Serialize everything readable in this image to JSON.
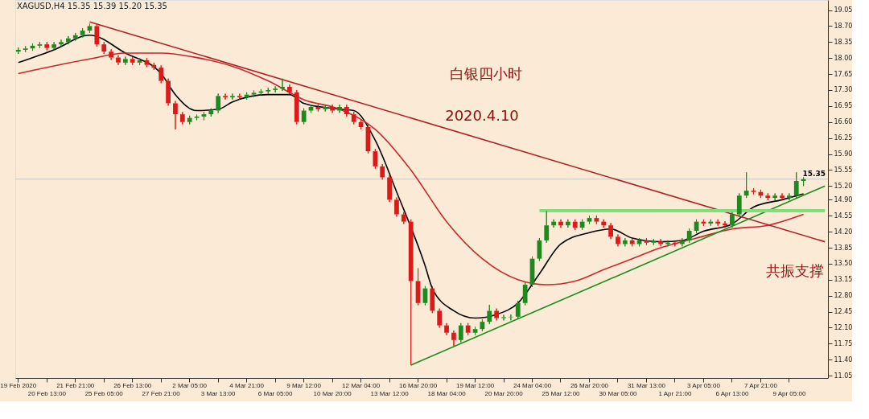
{
  "chart_data": {
    "type": "candlestick",
    "annotations": [
      "XAGUSD,H4  15.35 15.39 15.20 15.35",
      "白银四小时",
      "2020.4.10",
      "共振支撑"
    ],
    "categories": [
      "19 Feb 2020",
      null,
      null,
      null,
      "20 Feb 13:00",
      null,
      null,
      null,
      "21 Feb 21:00",
      null,
      null,
      null,
      "25 Feb 05:00",
      null,
      null,
      null,
      "26 Feb 13:00",
      null,
      null,
      null,
      "27 Feb 21:00",
      null,
      null,
      null,
      "2 Mar 05:00",
      null,
      null,
      null,
      "3 Mar 13:00",
      null,
      null,
      null,
      "4 Mar 21:00",
      null,
      null,
      null,
      "6 Mar 05:00",
      null,
      null,
      null,
      "9 Mar 12:00",
      null,
      null,
      null,
      "10 Mar 20:00",
      null,
      null,
      null,
      "12 Mar 04:00",
      null,
      null,
      null,
      "13 Mar 12:00",
      null,
      null,
      null,
      "16 Mar 20:00",
      null,
      null,
      null,
      "18 Mar 04:00",
      null,
      null,
      null,
      "19 Mar 12:00",
      null,
      null,
      null,
      "20 Mar 20:00",
      null,
      null,
      null,
      "24 Mar 04:00",
      null,
      null,
      null,
      "25 Mar 12:00",
      null,
      null,
      null,
      "26 Mar 20:00",
      null,
      null,
      null,
      "30 Mar 05:00",
      null,
      null,
      null,
      "31 Mar 13:00",
      null,
      null,
      null,
      "1 Apr 21:00",
      null,
      null,
      null,
      "3 Apr 05:00",
      null,
      null,
      null,
      "6 Apr 13:00",
      null,
      null,
      null,
      "7 Apr 21:00",
      null,
      null,
      null,
      "9 Apr 05:00",
      null,
      null,
      null,
      null,
      null
    ],
    "ohlc": [
      [
        18.14,
        18.23,
        18.09,
        18.18
      ],
      [
        18.18,
        18.26,
        18.13,
        18.21
      ],
      [
        18.21,
        18.32,
        18.16,
        18.27
      ],
      [
        18.27,
        18.35,
        18.22,
        18.3
      ],
      [
        18.3,
        18.35,
        18.17,
        18.22
      ],
      [
        18.22,
        18.35,
        18.17,
        18.3
      ],
      [
        18.3,
        18.4,
        18.25,
        18.35
      ],
      [
        18.35,
        18.48,
        18.3,
        18.43
      ],
      [
        18.43,
        18.55,
        18.38,
        18.5
      ],
      [
        18.5,
        18.65,
        18.45,
        18.6
      ],
      [
        18.6,
        18.75,
        18.55,
        18.7
      ],
      [
        18.7,
        18.75,
        18.25,
        18.3
      ],
      [
        18.3,
        18.35,
        18.09,
        18.14
      ],
      [
        18.14,
        18.19,
        17.96,
        18.01
      ],
      [
        18.01,
        18.06,
        17.85,
        17.9
      ],
      [
        17.9,
        18.03,
        17.85,
        17.98
      ],
      [
        17.98,
        18.03,
        17.85,
        17.9
      ],
      [
        17.9,
        18.0,
        17.85,
        17.95
      ],
      [
        17.95,
        18.0,
        17.8,
        17.85
      ],
      [
        17.85,
        17.9,
        17.74,
        17.79
      ],
      [
        17.79,
        17.84,
        17.45,
        17.5
      ],
      [
        17.5,
        17.55,
        16.96,
        17.01
      ],
      [
        17.01,
        17.06,
        16.44,
        16.77
      ],
      [
        16.77,
        16.82,
        16.55,
        16.6
      ],
      [
        16.6,
        16.74,
        16.55,
        16.69
      ],
      [
        16.69,
        16.76,
        16.64,
        16.72
      ],
      [
        16.72,
        16.82,
        16.64,
        16.77
      ],
      [
        16.77,
        16.9,
        16.72,
        16.85
      ],
      [
        16.85,
        17.22,
        16.8,
        17.17
      ],
      [
        17.17,
        17.22,
        17.09,
        17.14
      ],
      [
        17.14,
        17.22,
        17.09,
        17.17
      ],
      [
        17.17,
        17.22,
        17.09,
        17.14
      ],
      [
        17.14,
        17.25,
        17.09,
        17.2
      ],
      [
        17.2,
        17.29,
        17.15,
        17.24
      ],
      [
        17.24,
        17.32,
        17.19,
        17.27
      ],
      [
        17.27,
        17.35,
        17.22,
        17.3
      ],
      [
        17.3,
        17.38,
        17.25,
        17.33
      ],
      [
        17.33,
        17.55,
        17.28,
        17.37
      ],
      [
        17.37,
        17.42,
        17.2,
        17.25
      ],
      [
        17.25,
        17.3,
        16.55,
        16.6
      ],
      [
        16.6,
        16.9,
        16.55,
        16.85
      ],
      [
        16.85,
        16.98,
        16.8,
        16.93
      ],
      [
        16.93,
        16.98,
        16.83,
        16.88
      ],
      [
        16.88,
        16.98,
        16.83,
        16.93
      ],
      [
        16.93,
        16.98,
        16.8,
        16.85
      ],
      [
        16.85,
        16.98,
        16.8,
        16.93
      ],
      [
        16.93,
        16.98,
        16.72,
        16.77
      ],
      [
        16.77,
        16.82,
        16.55,
        16.6
      ],
      [
        16.6,
        16.65,
        16.44,
        16.49
      ],
      [
        16.49,
        16.54,
        15.91,
        15.96
      ],
      [
        15.96,
        16.01,
        15.58,
        15.63
      ],
      [
        15.63,
        15.68,
        15.34,
        15.39
      ],
      [
        15.39,
        15.44,
        14.85,
        14.9
      ],
      [
        14.9,
        14.95,
        14.53,
        14.58
      ],
      [
        14.58,
        14.63,
        14.37,
        14.42
      ],
      [
        14.42,
        14.47,
        11.28,
        13.12
      ],
      [
        13.12,
        13.4,
        12.59,
        12.64
      ],
      [
        12.64,
        13.01,
        12.59,
        12.96
      ],
      [
        12.96,
        13.01,
        12.42,
        12.47
      ],
      [
        12.47,
        12.52,
        12.1,
        12.15
      ],
      [
        12.15,
        12.2,
        11.94,
        11.99
      ],
      [
        11.99,
        12.04,
        11.7,
        11.83
      ],
      [
        11.83,
        12.2,
        11.78,
        12.15
      ],
      [
        12.15,
        12.2,
        11.94,
        11.99
      ],
      [
        11.99,
        12.12,
        11.94,
        12.07
      ],
      [
        12.07,
        12.28,
        12.02,
        12.23
      ],
      [
        12.23,
        12.6,
        12.18,
        12.47
      ],
      [
        12.47,
        12.52,
        12.26,
        12.31
      ],
      [
        12.31,
        12.38,
        12.26,
        12.33
      ],
      [
        12.33,
        12.39,
        12.26,
        12.34
      ],
      [
        12.34,
        12.69,
        12.29,
        12.64
      ],
      [
        12.64,
        13.09,
        12.59,
        13.04
      ],
      [
        13.04,
        13.66,
        12.99,
        13.61
      ],
      [
        13.61,
        14.06,
        13.56,
        14.01
      ],
      [
        14.01,
        14.66,
        13.96,
        14.34
      ],
      [
        14.34,
        14.47,
        14.29,
        14.42
      ],
      [
        14.42,
        14.47,
        14.29,
        14.34
      ],
      [
        14.34,
        14.47,
        14.29,
        14.42
      ],
      [
        14.42,
        14.47,
        14.24,
        14.29
      ],
      [
        14.29,
        14.47,
        14.24,
        14.42
      ],
      [
        14.42,
        14.55,
        14.37,
        14.5
      ],
      [
        14.5,
        14.55,
        14.37,
        14.42
      ],
      [
        14.42,
        14.47,
        14.29,
        14.34
      ],
      [
        14.34,
        14.39,
        14.04,
        14.09
      ],
      [
        14.09,
        14.14,
        13.88,
        13.93
      ],
      [
        13.93,
        14.06,
        13.88,
        14.01
      ],
      [
        14.01,
        14.06,
        13.88,
        13.93
      ],
      [
        13.93,
        14.06,
        13.88,
        14.01
      ],
      [
        14.01,
        14.06,
        13.91,
        13.96
      ],
      [
        13.96,
        14.04,
        13.91,
        13.99
      ],
      [
        13.99,
        14.04,
        13.88,
        13.93
      ],
      [
        13.93,
        14.01,
        13.88,
        13.96
      ],
      [
        13.96,
        14.01,
        13.88,
        13.93
      ],
      [
        13.93,
        14.06,
        13.88,
        14.01
      ],
      [
        14.01,
        14.27,
        13.96,
        14.22
      ],
      [
        14.22,
        14.47,
        14.17,
        14.42
      ],
      [
        14.42,
        14.47,
        14.33,
        14.38
      ],
      [
        14.38,
        14.47,
        14.33,
        14.42
      ],
      [
        14.42,
        14.47,
        14.33,
        14.38
      ],
      [
        14.38,
        14.43,
        14.29,
        14.34
      ],
      [
        14.34,
        14.63,
        14.29,
        14.58
      ],
      [
        14.58,
        15.04,
        14.53,
        14.99
      ],
      [
        14.99,
        15.5,
        14.94,
        15.1
      ],
      [
        15.1,
        15.15,
        15.02,
        15.07
      ],
      [
        15.07,
        15.12,
        14.94,
        14.99
      ],
      [
        14.99,
        15.04,
        14.89,
        14.94
      ],
      [
        14.94,
        15.04,
        14.89,
        14.99
      ],
      [
        14.99,
        15.04,
        14.89,
        14.94
      ],
      [
        14.94,
        15.04,
        14.89,
        14.99
      ],
      [
        14.99,
        15.5,
        14.94,
        15.31
      ],
      [
        15.31,
        15.39,
        15.2,
        15.35
      ],
      null,
      null,
      null
    ],
    "series": [
      {
        "type": "line",
        "color": "#000000",
        "values": [
          17.9,
          null,
          null,
          null,
          null,
          18.18,
          null,
          null,
          null,
          null,
          18.5,
          null,
          null,
          null,
          null,
          18.11,
          null,
          null,
          null,
          null,
          17.66,
          null,
          17.2,
          null,
          null,
          16.85,
          null,
          null,
          16.88,
          null,
          17.04,
          null,
          null,
          null,
          null,
          17.2,
          null,
          null,
          17.2,
          null,
          17.01,
          null,
          null,
          null,
          16.9,
          null,
          null,
          16.85,
          null,
          null,
          16.2,
          null,
          null,
          15.07,
          null,
          null,
          null,
          13.45,
          12.96,
          null,
          null,
          12.47,
          null,
          null,
          12.31,
          null,
          null,
          12.39,
          null,
          null,
          12.64,
          null,
          null,
          13.28,
          null,
          null,
          13.93,
          null,
          null,
          null,
          14.18,
          null,
          null,
          14.26,
          null,
          null,
          14.06,
          null,
          null,
          null,
          13.98,
          null,
          null,
          14.01,
          null,
          null,
          14.21,
          null,
          null,
          null,
          14.37,
          null,
          null,
          14.74,
          null,
          null,
          null,
          14.9,
          null,
          null,
          15.03,
          null,
          null,
          null
        ]
      },
      {
        "type": "line",
        "color": "#c8282d",
        "values": [
          17.66,
          null,
          null,
          null,
          null,
          null,
          null,
          null,
          null,
          null,
          17.98,
          null,
          null,
          null,
          null,
          18.11,
          null,
          null,
          null,
          null,
          18.11,
          null,
          null,
          null,
          null,
          18.01,
          null,
          null,
          null,
          null,
          17.82,
          null,
          null,
          null,
          null,
          17.5,
          null,
          null,
          null,
          null,
          17.09,
          null,
          null,
          null,
          null,
          16.88,
          null,
          null,
          null,
          null,
          16.44,
          null,
          null,
          null,
          null,
          15.55,
          null,
          null,
          null,
          null,
          14.42,
          null,
          null,
          null,
          null,
          13.61,
          null,
          null,
          null,
          null,
          13.15,
          null,
          null,
          null,
          13.04,
          null,
          null,
          null,
          13.12,
          null,
          null,
          null,
          13.37,
          null,
          null,
          null,
          13.61,
          null,
          null,
          null,
          13.85,
          null,
          null,
          null,
          null,
          14.06,
          null,
          null,
          null,
          null,
          14.26,
          null,
          null,
          null,
          null,
          14.34,
          null,
          null,
          null,
          null,
          14.58,
          null,
          null,
          null
        ]
      },
      {
        "type": "line",
        "color": "#b01e23",
        "values": [
          null,
          null,
          null,
          null,
          null,
          null,
          null,
          null,
          null,
          null,
          18.79,
          null,
          null,
          null,
          null,
          null,
          null,
          null,
          null,
          null,
          null,
          null,
          null,
          null,
          null,
          null,
          null,
          null,
          null,
          null,
          null,
          null,
          null,
          null,
          null,
          null,
          null,
          null,
          null,
          null,
          null,
          null,
          null,
          null,
          null,
          null,
          null,
          null,
          null,
          null,
          null,
          null,
          null,
          null,
          null,
          null,
          null,
          null,
          null,
          null,
          null,
          null,
          null,
          null,
          null,
          null,
          null,
          null,
          null,
          null,
          null,
          null,
          null,
          null,
          null,
          null,
          null,
          null,
          null,
          null,
          null,
          null,
          null,
          null,
          null,
          null,
          null,
          null,
          null,
          null,
          null,
          null,
          null,
          null,
          null,
          null,
          null,
          null,
          null,
          null,
          null,
          null,
          null,
          null,
          null,
          null,
          null,
          null,
          null,
          null,
          null,
          null,
          null,
          13.98
        ]
      },
      {
        "type": "line",
        "color": "#1f8c1f",
        "values": [
          null,
          null,
          null,
          null,
          null,
          null,
          null,
          null,
          null,
          null,
          null,
          null,
          null,
          null,
          null,
          null,
          null,
          null,
          null,
          null,
          null,
          null,
          null,
          null,
          null,
          null,
          null,
          null,
          null,
          null,
          null,
          null,
          null,
          null,
          null,
          null,
          null,
          null,
          null,
          null,
          null,
          null,
          null,
          null,
          null,
          null,
          null,
          null,
          null,
          null,
          null,
          null,
          null,
          null,
          null,
          11.28,
          null,
          null,
          null,
          null,
          null,
          null,
          null,
          null,
          null,
          null,
          null,
          null,
          null,
          null,
          null,
          null,
          null,
          null,
          null,
          null,
          null,
          null,
          null,
          null,
          null,
          null,
          null,
          null,
          null,
          null,
          null,
          null,
          null,
          null,
          null,
          null,
          null,
          null,
          null,
          null,
          null,
          null,
          null,
          null,
          null,
          null,
          null,
          null,
          null,
          null,
          null,
          null,
          null,
          null,
          null,
          null,
          null,
          15.2
        ]
      },
      {
        "type": "line",
        "color": "#7fe07a",
        "values": [
          null,
          null,
          null,
          null,
          null,
          null,
          null,
          null,
          null,
          null,
          null,
          null,
          null,
          null,
          null,
          null,
          null,
          null,
          null,
          null,
          null,
          null,
          null,
          null,
          null,
          null,
          null,
          null,
          null,
          null,
          null,
          null,
          null,
          null,
          null,
          null,
          null,
          null,
          null,
          null,
          null,
          null,
          null,
          null,
          null,
          null,
          null,
          null,
          null,
          null,
          null,
          null,
          null,
          null,
          null,
          null,
          null,
          null,
          null,
          null,
          null,
          null,
          null,
          null,
          null,
          null,
          null,
          null,
          null,
          null,
          null,
          null,
          null,
          14.66,
          null,
          null,
          null,
          null,
          null,
          null,
          null,
          null,
          null,
          null,
          null,
          null,
          null,
          null,
          null,
          null,
          null,
          null,
          null,
          null,
          null,
          null,
          null,
          null,
          null,
          null,
          null,
          null,
          null,
          null,
          null,
          null,
          null,
          null,
          null,
          null,
          null,
          null,
          null,
          14.66
        ]
      }
    ],
    "ref_lines": [
      {
        "axis": "y",
        "value": 15.35,
        "label": "15.35",
        "color": "#c8c8c8"
      }
    ],
    "ylim": [
      11.0,
      19.27
    ],
    "yticks": [
      19.05,
      {
        "value": 18.7,
        "label": "18.70"
      },
      18.35,
      {
        "value": 18.0,
        "label": "18.00"
      },
      17.65,
      {
        "value": 17.3,
        "label": "17.30"
      },
      16.95,
      {
        "value": 16.6,
        "label": "16.60"
      },
      16.25,
      {
        "value": 15.9,
        "label": "15.90"
      },
      15.55,
      {
        "value": 15.2,
        "label": "15.20"
      },
      {
        "value": 14.9,
        "label": "14.90"
      },
      14.55,
      {
        "value": 14.2,
        "label": "14.20"
      },
      13.85,
      {
        "value": 13.5,
        "label": "13.50"
      },
      13.15,
      {
        "value": 12.8,
        "label": "12.80"
      },
      12.45,
      {
        "value": 12.1,
        "label": "12.10"
      },
      11.75,
      {
        "value": 11.4,
        "label": "11.40"
      },
      11.05
    ],
    "grid": false
  }
}
